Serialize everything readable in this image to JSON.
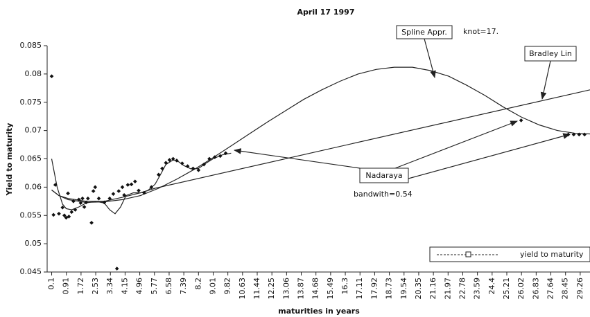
{
  "chart_data": {
    "type": "scatter",
    "title": "April 17 1997",
    "x_label": "maturities in years",
    "y_label": "Yield to maturity",
    "xlim": [
      -0.15,
      29.8
    ],
    "ylim": [
      0.045,
      0.085
    ],
    "xticks": [
      0.1,
      0.91,
      1.72,
      2.53,
      3.34,
      4.15,
      4.96,
      5.77,
      6.58,
      7.39,
      8.2,
      9.01,
      9.82,
      10.63,
      11.44,
      12.25,
      13.06,
      13.87,
      14.68,
      15.49,
      16.3,
      17.11,
      17.92,
      18.73,
      19.54,
      20.35,
      21.16,
      21.97,
      22.78,
      23.59,
      24.4,
      25.21,
      26.02,
      26.83,
      27.64,
      28.45,
      29.26
    ],
    "yticks": [
      0.045,
      0.05,
      0.055,
      0.06,
      0.065,
      0.07,
      0.075,
      0.08,
      0.085
    ],
    "legend": "lower right",
    "series": [
      {
        "name": "yield to maturity",
        "color": "#111111",
        "x": [
          0.1,
          0.2,
          0.3,
          0.5,
          0.7,
          0.8,
          0.9,
          1.0,
          1.05,
          1.2,
          1.3,
          1.4,
          1.6,
          1.7,
          1.8,
          1.9,
          2.0,
          2.1,
          2.3,
          2.4,
          2.5,
          2.7,
          3.0,
          3.3,
          3.5,
          3.7,
          3.8,
          4.0,
          4.1,
          4.3,
          4.5,
          4.7,
          4.9,
          5.2,
          5.6,
          6.0,
          6.2,
          6.4,
          6.6,
          6.8,
          7.0,
          7.3,
          7.6,
          7.9,
          8.2,
          8.5,
          8.8,
          9.1,
          9.4,
          9.7,
          26.0,
          28.6,
          28.9,
          29.2,
          29.5
        ],
        "values": [
          0.0796,
          0.0551,
          0.0604,
          0.0553,
          0.0564,
          0.055,
          0.0546,
          0.0589,
          0.0548,
          0.0556,
          0.0575,
          0.056,
          0.0578,
          0.0572,
          0.058,
          0.0565,
          0.0573,
          0.058,
          0.0537,
          0.0593,
          0.06,
          0.058,
          0.0573,
          0.058,
          0.0588,
          0.0456,
          0.0593,
          0.06,
          0.0586,
          0.0604,
          0.0605,
          0.061,
          0.0594,
          0.059,
          0.06,
          0.0622,
          0.0633,
          0.0643,
          0.0648,
          0.065,
          0.0647,
          0.0642,
          0.0637,
          0.0633,
          0.063,
          0.064,
          0.065,
          0.0653,
          0.0655,
          0.066,
          0.0718,
          0.0693,
          0.0693,
          0.0693,
          0.0693
        ]
      }
    ],
    "curves": [
      {
        "name": "Spline Appr.",
        "note": "knot=17.",
        "color": "#222222",
        "x": [
          0.1,
          0.5,
          1,
          2,
          3,
          4,
          5,
          6,
          7,
          8,
          9,
          10,
          11,
          12,
          13,
          14,
          15,
          16,
          17,
          18,
          19,
          20,
          21,
          22,
          23,
          24,
          25,
          26,
          27,
          28,
          29,
          29.8
        ],
        "values": [
          0.0595,
          0.0585,
          0.0578,
          0.0573,
          0.0574,
          0.0578,
          0.0585,
          0.0598,
          0.0614,
          0.0632,
          0.0652,
          0.0673,
          0.0694,
          0.0715,
          0.0735,
          0.0755,
          0.0772,
          0.0787,
          0.08,
          0.0808,
          0.0812,
          0.0812,
          0.0806,
          0.0796,
          0.078,
          0.0762,
          0.0742,
          0.0724,
          0.071,
          0.07,
          0.0695,
          0.0694
        ]
      },
      {
        "name": "Bradley Lin",
        "color": "#222222",
        "x": [
          0.1,
          0.5,
          1,
          2,
          3,
          4,
          5,
          5.8,
          29.8
        ],
        "values": [
          0.0595,
          0.0585,
          0.058,
          0.0575,
          0.0575,
          0.0582,
          0.059,
          0.0598,
          0.0772
        ]
      },
      {
        "name": "Nadaraya",
        "note": "bandwith=0.54",
        "color": "#222222",
        "x": [
          0.1,
          0.4,
          0.7,
          0.9,
          1.2,
          1.6,
          2,
          2.5,
          3,
          3.3,
          3.6,
          3.9,
          4.2,
          4.6,
          5,
          5.4,
          5.8,
          6.1,
          6.4,
          6.8,
          7.1,
          7.4,
          7.8,
          8.2,
          8.6,
          9,
          9.5,
          10
        ],
        "values": [
          0.065,
          0.06,
          0.057,
          0.0562,
          0.056,
          0.0565,
          0.0572,
          0.0575,
          0.0572,
          0.056,
          0.0553,
          0.0565,
          0.0585,
          0.059,
          0.059,
          0.0594,
          0.0605,
          0.0622,
          0.064,
          0.0648,
          0.0645,
          0.0638,
          0.0632,
          0.0633,
          0.0642,
          0.065,
          0.0657,
          0.066
        ]
      }
    ]
  }
}
